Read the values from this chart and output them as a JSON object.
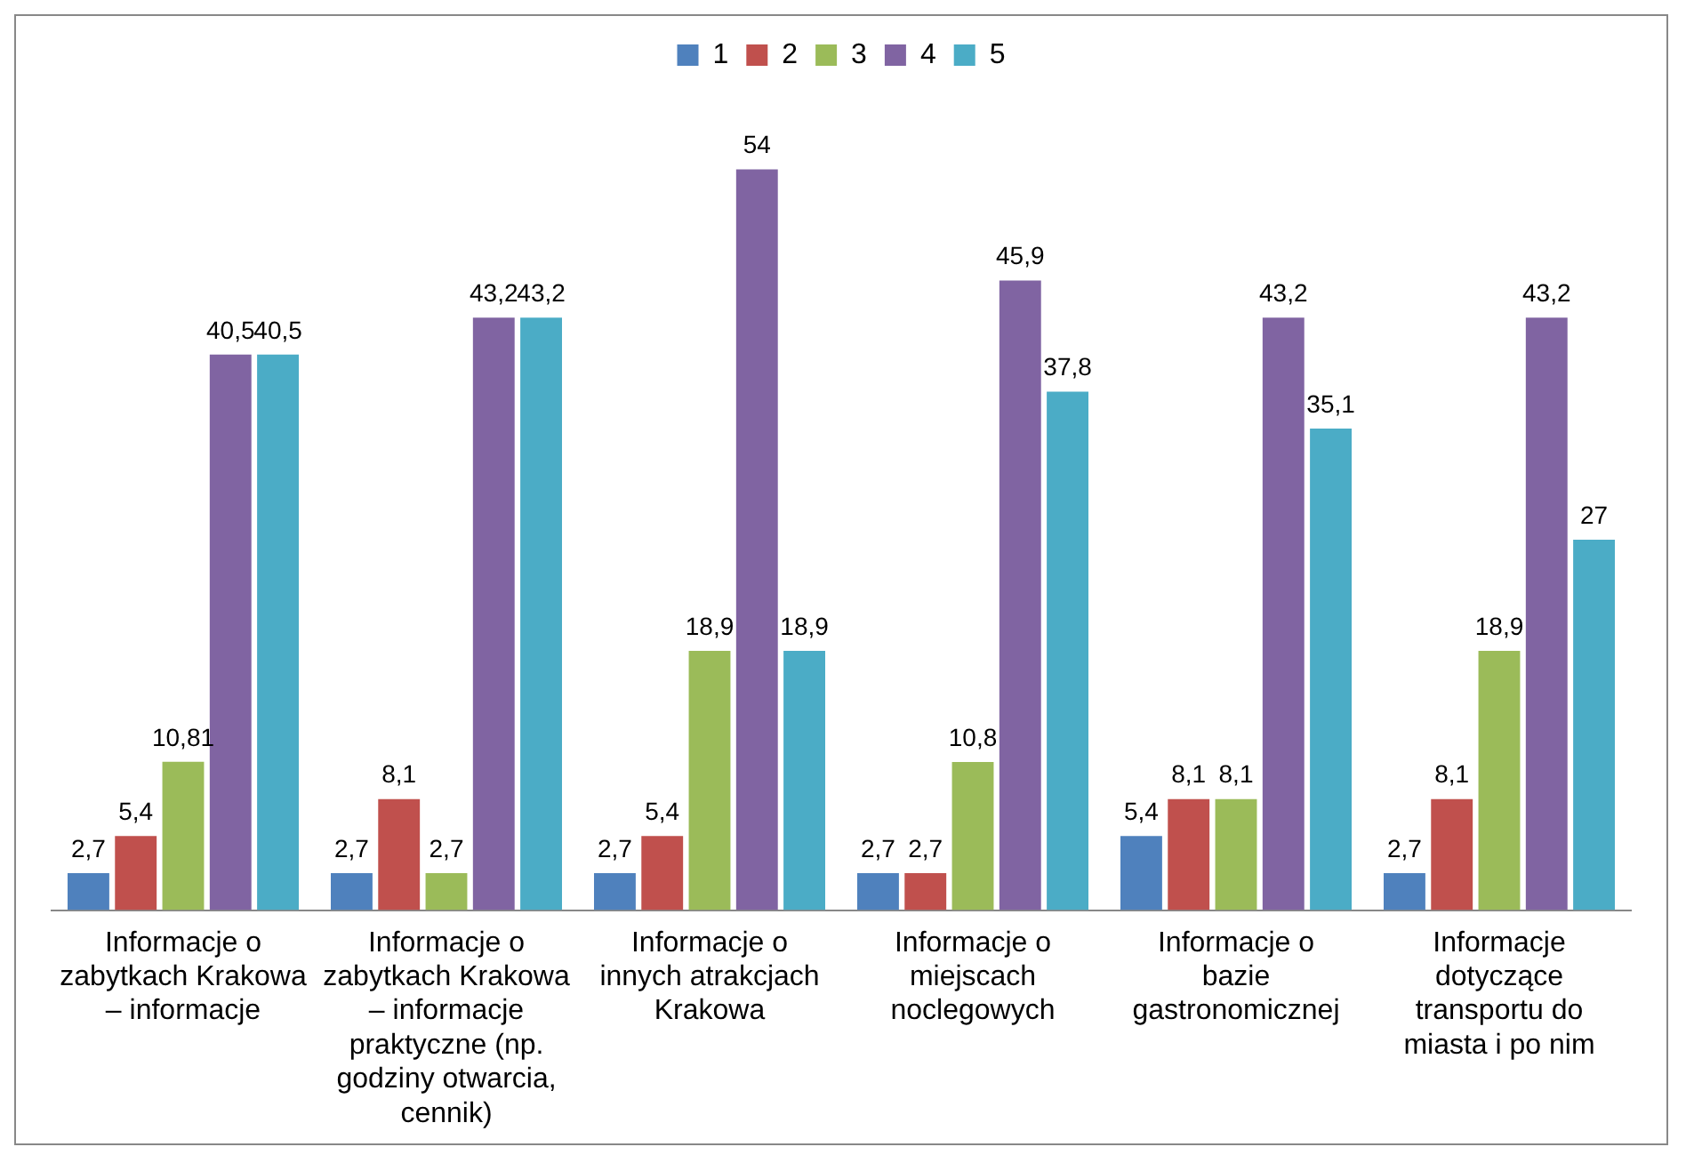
{
  "chart_data": {
    "type": "bar",
    "categories": [
      "Informacje o zabytkach Krakowa – informacje",
      "Informacje o zabytkach Krakowa – informacje praktyczne (np. godziny otwarcia, cennik)",
      "Informacje o innych atrakcjach Krakowa",
      "Informacje o miejscach noclegowych",
      "Informacje o bazie gastronomicznej",
      "Informacje dotyczące transportu do miasta i po nim"
    ],
    "series": [
      {
        "name": "1",
        "color": "#4f81bd",
        "values": [
          2.7,
          2.7,
          2.7,
          2.7,
          5.4,
          2.7
        ],
        "value_labels": [
          "2,7",
          "2,7",
          "2,7",
          "2,7",
          "5,4",
          "2,7"
        ]
      },
      {
        "name": "2",
        "color": "#c0504d",
        "values": [
          5.4,
          8.1,
          5.4,
          2.7,
          8.1,
          8.1
        ],
        "value_labels": [
          "5,4",
          "8,1",
          "5,4",
          "2,7",
          "8,1",
          "8,1"
        ]
      },
      {
        "name": "3",
        "color": "#9bbb59",
        "values": [
          10.81,
          2.7,
          18.9,
          10.8,
          8.1,
          18.9
        ],
        "value_labels": [
          "10,81",
          "2,7",
          "18,9",
          "10,8",
          "8,1",
          "18,9"
        ]
      },
      {
        "name": "4",
        "color": "#8064a2",
        "values": [
          40.5,
          43.2,
          54,
          45.9,
          43.2,
          43.2
        ],
        "value_labels": [
          "40,5",
          "43,2",
          "54",
          "45,9",
          "43,2",
          "43,2"
        ]
      },
      {
        "name": "5",
        "color": "#4bacc6",
        "values": [
          40.5,
          43.2,
          18.9,
          37.8,
          35.1,
          27
        ],
        "value_labels": [
          "40,5",
          "43,2",
          "18,9",
          "37,8",
          "35,1",
          "27"
        ]
      }
    ],
    "legend": "top",
    "grid": false
  }
}
